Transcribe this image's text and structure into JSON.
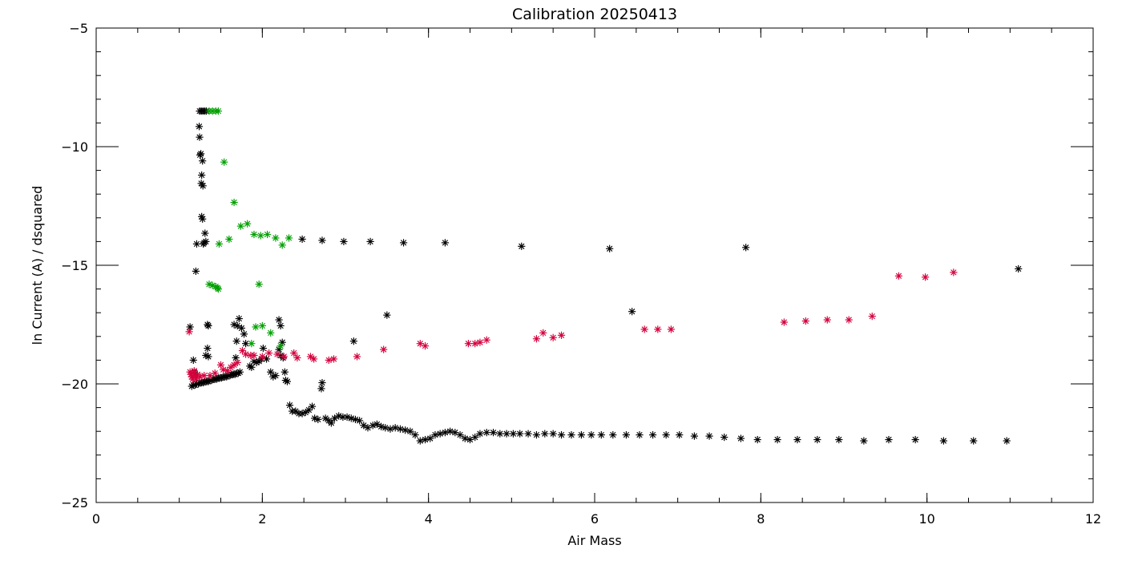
{
  "chart_data": {
    "type": "scatter",
    "title": "Calibration 20250413",
    "xlabel": "Air Mass",
    "ylabel": "ln Current (A) / dsquared",
    "xlim": [
      0,
      12
    ],
    "ylim": [
      -25,
      -5
    ],
    "x_ticks": [
      0,
      2,
      4,
      6,
      8,
      10,
      12
    ],
    "x_tick_labels": [
      "0",
      "2",
      "4",
      "6",
      "8",
      "10",
      "12"
    ],
    "y_ticks": [
      -25,
      -20,
      -15,
      -10,
      -5
    ],
    "y_tick_labels": [
      "−25",
      "−20",
      "−15",
      "−10",
      "−5"
    ],
    "x_minor_step": 0.5,
    "y_minor_step": 1,
    "grid": false,
    "marker": "asterisk",
    "colors": {
      "black_series": "#000000",
      "red_series": "#d4003c",
      "green_series": "#00a000"
    },
    "series": [
      {
        "color_key": "black_series",
        "points": [
          [
            1.15,
            -20.1
          ],
          [
            1.17,
            -20.05
          ],
          [
            1.19,
            -20.05
          ],
          [
            1.21,
            -20.0
          ],
          [
            1.23,
            -20.0
          ],
          [
            1.25,
            -19.95
          ],
          [
            1.27,
            -19.95
          ],
          [
            1.29,
            -19.95
          ],
          [
            1.31,
            -19.9
          ],
          [
            1.33,
            -19.9
          ],
          [
            1.35,
            -19.9
          ],
          [
            1.37,
            -19.85
          ],
          [
            1.39,
            -19.85
          ],
          [
            1.41,
            -19.8
          ],
          [
            1.43,
            -19.8
          ],
          [
            1.45,
            -19.8
          ],
          [
            1.47,
            -19.75
          ],
          [
            1.49,
            -19.75
          ],
          [
            1.51,
            -19.75
          ],
          [
            1.53,
            -19.7
          ],
          [
            1.55,
            -19.7
          ],
          [
            1.57,
            -19.7
          ],
          [
            1.59,
            -19.65
          ],
          [
            1.61,
            -19.65
          ],
          [
            1.63,
            -19.6
          ],
          [
            1.65,
            -19.6
          ],
          [
            1.67,
            -19.6
          ],
          [
            1.69,
            -19.55
          ],
          [
            1.71,
            -19.55
          ],
          [
            1.73,
            -19.5
          ],
          [
            1.13,
            -17.6
          ],
          [
            1.17,
            -19.0
          ],
          [
            1.18,
            -19.5
          ],
          [
            1.2,
            -15.25
          ],
          [
            1.21,
            -14.1
          ],
          [
            1.24,
            -9.15
          ],
          [
            1.245,
            -9.6
          ],
          [
            1.25,
            -10.35
          ],
          [
            1.26,
            -10.3
          ],
          [
            1.265,
            -11.55
          ],
          [
            1.27,
            -11.2
          ],
          [
            1.28,
            -10.6
          ],
          [
            1.285,
            -11.65
          ],
          [
            1.27,
            -12.95
          ],
          [
            1.28,
            -13.05
          ],
          [
            1.29,
            -14.1
          ],
          [
            1.3,
            -14.05
          ],
          [
            1.31,
            -13.65
          ],
          [
            1.32,
            -14.0
          ],
          [
            1.34,
            -17.5
          ],
          [
            1.35,
            -17.55
          ],
          [
            1.34,
            -18.5
          ],
          [
            1.35,
            -18.85
          ],
          [
            1.32,
            -18.8
          ],
          [
            1.245,
            -8.5
          ],
          [
            1.265,
            -8.5
          ],
          [
            1.285,
            -8.5
          ],
          [
            1.305,
            -8.5
          ],
          [
            1.325,
            -8.5
          ],
          [
            1.66,
            -17.5
          ],
          [
            1.7,
            -17.55
          ],
          [
            1.72,
            -17.25
          ],
          [
            1.75,
            -17.65
          ],
          [
            1.78,
            -17.9
          ],
          [
            1.8,
            -18.3
          ],
          [
            1.69,
            -18.2
          ],
          [
            1.68,
            -18.9
          ],
          [
            1.85,
            -19.25
          ],
          [
            1.87,
            -19.3
          ],
          [
            1.9,
            -19.05
          ],
          [
            1.93,
            -19.1
          ],
          [
            1.96,
            -19.05
          ],
          [
            1.99,
            -18.95
          ],
          [
            2.01,
            -18.5
          ],
          [
            2.05,
            -18.95
          ],
          [
            2.1,
            -19.5
          ],
          [
            2.13,
            -19.7
          ],
          [
            2.16,
            -19.65
          ],
          [
            2.2,
            -18.55
          ],
          [
            2.22,
            -18.8
          ],
          [
            2.2,
            -17.3
          ],
          [
            2.22,
            -17.55
          ],
          [
            2.24,
            -18.25
          ],
          [
            2.25,
            -18.9
          ],
          [
            2.27,
            -19.5
          ],
          [
            2.28,
            -19.85
          ],
          [
            2.3,
            -19.9
          ],
          [
            2.33,
            -20.9
          ],
          [
            2.36,
            -21.15
          ],
          [
            2.4,
            -21.15
          ],
          [
            2.44,
            -21.25
          ],
          [
            2.48,
            -21.25
          ],
          [
            2.52,
            -21.2
          ],
          [
            2.56,
            -21.1
          ],
          [
            2.6,
            -20.95
          ],
          [
            2.63,
            -21.45
          ],
          [
            2.67,
            -21.5
          ],
          [
            2.71,
            -20.2
          ],
          [
            2.72,
            -19.95
          ],
          [
            2.76,
            -21.45
          ],
          [
            2.8,
            -21.55
          ],
          [
            2.83,
            -21.65
          ],
          [
            2.87,
            -21.45
          ],
          [
            2.92,
            -21.35
          ],
          [
            2.97,
            -21.4
          ],
          [
            3.02,
            -21.4
          ],
          [
            3.07,
            -21.45
          ],
          [
            3.12,
            -21.5
          ],
          [
            3.17,
            -21.55
          ],
          [
            3.22,
            -21.75
          ],
          [
            3.27,
            -21.85
          ],
          [
            3.33,
            -21.75
          ],
          [
            3.38,
            -21.7
          ],
          [
            3.43,
            -21.8
          ],
          [
            3.48,
            -21.85
          ],
          [
            3.54,
            -21.9
          ],
          [
            3.6,
            -21.85
          ],
          [
            3.66,
            -21.9
          ],
          [
            3.72,
            -21.95
          ],
          [
            3.78,
            -22.0
          ],
          [
            3.84,
            -22.15
          ],
          [
            3.9,
            -22.4
          ],
          [
            3.96,
            -22.35
          ],
          [
            4.02,
            -22.3
          ],
          [
            4.08,
            -22.15
          ],
          [
            4.14,
            -22.1
          ],
          [
            4.2,
            -22.05
          ],
          [
            4.26,
            -22.0
          ],
          [
            4.32,
            -22.05
          ],
          [
            4.38,
            -22.15
          ],
          [
            4.44,
            -22.3
          ],
          [
            4.5,
            -22.35
          ],
          [
            4.56,
            -22.25
          ],
          [
            4.62,
            -22.1
          ],
          [
            4.7,
            -22.05
          ],
          [
            4.78,
            -22.05
          ],
          [
            4.86,
            -22.1
          ],
          [
            4.94,
            -22.1
          ],
          [
            5.02,
            -22.1
          ],
          [
            5.1,
            -22.1
          ],
          [
            5.2,
            -22.1
          ],
          [
            5.3,
            -22.15
          ],
          [
            5.4,
            -22.1
          ],
          [
            5.5,
            -22.1
          ],
          [
            5.6,
            -22.15
          ],
          [
            5.72,
            -22.15
          ],
          [
            5.84,
            -22.15
          ],
          [
            5.96,
            -22.15
          ],
          [
            6.08,
            -22.15
          ],
          [
            6.22,
            -22.15
          ],
          [
            6.38,
            -22.15
          ],
          [
            6.54,
            -22.15
          ],
          [
            6.7,
            -22.15
          ],
          [
            6.86,
            -22.15
          ],
          [
            7.02,
            -22.15
          ],
          [
            7.2,
            -22.2
          ],
          [
            7.38,
            -22.2
          ],
          [
            7.56,
            -22.25
          ],
          [
            7.76,
            -22.3
          ],
          [
            7.96,
            -22.35
          ],
          [
            8.2,
            -22.35
          ],
          [
            8.44,
            -22.35
          ],
          [
            8.68,
            -22.35
          ],
          [
            8.94,
            -22.35
          ],
          [
            9.24,
            -22.4
          ],
          [
            9.54,
            -22.35
          ],
          [
            9.86,
            -22.35
          ],
          [
            10.2,
            -22.4
          ],
          [
            10.56,
            -22.4
          ],
          [
            10.96,
            -22.4
          ],
          [
            2.48,
            -13.9
          ],
          [
            2.72,
            -13.95
          ],
          [
            2.98,
            -14.0
          ],
          [
            3.3,
            -14.0
          ],
          [
            3.7,
            -14.05
          ],
          [
            4.2,
            -14.05
          ],
          [
            5.12,
            -14.2
          ],
          [
            6.18,
            -14.3
          ],
          [
            7.82,
            -14.25
          ],
          [
            11.1,
            -15.15
          ],
          [
            3.1,
            -18.2
          ],
          [
            3.5,
            -17.1
          ],
          [
            6.45,
            -16.95
          ]
        ]
      },
      {
        "color_key": "red_series",
        "points": [
          [
            1.12,
            -17.8
          ],
          [
            1.13,
            -19.5
          ],
          [
            1.14,
            -19.6
          ],
          [
            1.15,
            -19.7
          ],
          [
            1.16,
            -19.8
          ],
          [
            1.17,
            -19.55
          ],
          [
            1.18,
            -19.45
          ],
          [
            1.19,
            -19.65
          ],
          [
            1.2,
            -19.8
          ],
          [
            1.21,
            -19.7
          ],
          [
            1.22,
            -19.6
          ],
          [
            1.25,
            -19.7
          ],
          [
            1.3,
            -19.65
          ],
          [
            1.37,
            -19.65
          ],
          [
            1.43,
            -19.55
          ],
          [
            1.5,
            -19.2
          ],
          [
            1.53,
            -19.4
          ],
          [
            1.58,
            -19.45
          ],
          [
            1.62,
            -19.3
          ],
          [
            1.66,
            -19.2
          ],
          [
            1.7,
            -19.1
          ],
          [
            1.76,
            -18.6
          ],
          [
            1.8,
            -18.75
          ],
          [
            1.86,
            -18.8
          ],
          [
            1.9,
            -18.8
          ],
          [
            2.0,
            -18.85
          ],
          [
            2.08,
            -18.7
          ],
          [
            2.18,
            -18.75
          ],
          [
            2.26,
            -18.85
          ],
          [
            2.38,
            -18.7
          ],
          [
            2.42,
            -18.9
          ],
          [
            2.58,
            -18.85
          ],
          [
            2.62,
            -18.95
          ],
          [
            2.8,
            -19.0
          ],
          [
            2.86,
            -18.95
          ],
          [
            3.14,
            -18.85
          ],
          [
            3.46,
            -18.55
          ],
          [
            3.9,
            -18.3
          ],
          [
            3.96,
            -18.4
          ],
          [
            4.48,
            -18.3
          ],
          [
            4.56,
            -18.3
          ],
          [
            4.62,
            -18.25
          ],
          [
            4.7,
            -18.15
          ],
          [
            5.3,
            -18.1
          ],
          [
            5.38,
            -17.85
          ],
          [
            5.5,
            -18.05
          ],
          [
            5.6,
            -17.95
          ],
          [
            6.6,
            -17.7
          ],
          [
            6.76,
            -17.7
          ],
          [
            6.92,
            -17.7
          ],
          [
            8.28,
            -17.4
          ],
          [
            8.54,
            -17.35
          ],
          [
            8.8,
            -17.3
          ],
          [
            9.06,
            -17.3
          ],
          [
            9.34,
            -17.15
          ],
          [
            9.66,
            -15.45
          ],
          [
            9.98,
            -15.5
          ],
          [
            10.32,
            -15.3
          ]
        ]
      },
      {
        "color_key": "green_series",
        "points": [
          [
            1.36,
            -8.5
          ],
          [
            1.4,
            -8.5
          ],
          [
            1.44,
            -8.5
          ],
          [
            1.47,
            -8.5
          ],
          [
            1.54,
            -10.65
          ],
          [
            1.66,
            -12.35
          ],
          [
            1.74,
            -13.35
          ],
          [
            1.82,
            -13.25
          ],
          [
            1.9,
            -13.7
          ],
          [
            1.98,
            -13.75
          ],
          [
            2.06,
            -13.7
          ],
          [
            2.16,
            -13.85
          ],
          [
            2.24,
            -14.15
          ],
          [
            2.32,
            -13.85
          ],
          [
            1.48,
            -14.1
          ],
          [
            1.6,
            -13.9
          ],
          [
            1.36,
            -15.8
          ],
          [
            1.4,
            -15.85
          ],
          [
            1.44,
            -15.9
          ],
          [
            1.47,
            -16.0
          ],
          [
            1.46,
            -15.95
          ],
          [
            1.96,
            -15.8
          ],
          [
            1.92,
            -17.6
          ],
          [
            2.0,
            -17.55
          ],
          [
            2.1,
            -17.85
          ],
          [
            1.87,
            -18.3
          ],
          [
            2.22,
            -18.4
          ]
        ]
      }
    ]
  }
}
